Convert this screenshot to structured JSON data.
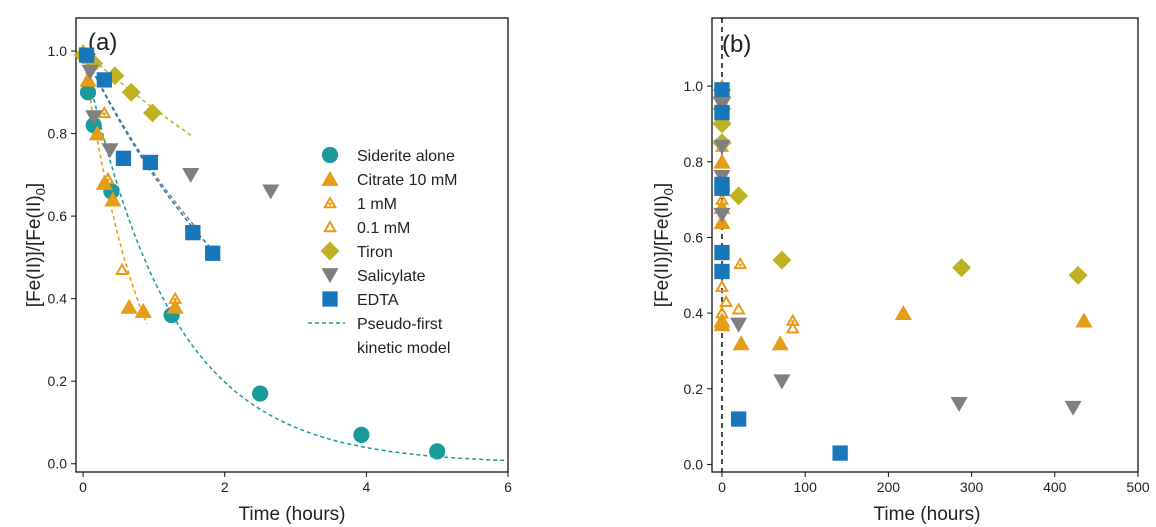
{
  "figure": {
    "panel_a": {
      "label": "(a)",
      "xlabel": "Time (hours)",
      "ylabel_main": "[Fe(II)]/[Fe(II)",
      "ylabel_sub": "0",
      "ylabel_end": "]"
    },
    "panel_b": {
      "label": "(b)",
      "xlabel": "Time (hours)",
      "ylabel_main": "[Fe(II)]/[Fe(II)",
      "ylabel_sub": "0",
      "ylabel_end": "]"
    }
  },
  "legend": {
    "items": [
      {
        "key": "siderite",
        "label": "Siderite alone"
      },
      {
        "key": "citrate10",
        "label": "Citrate 10 mM"
      },
      {
        "key": "citrate1",
        "label": "1 mM"
      },
      {
        "key": "citrate01",
        "label": "0.1 mM"
      },
      {
        "key": "tiron",
        "label": "Tiron"
      },
      {
        "key": "salicylate",
        "label": "Salicylate"
      },
      {
        "key": "edta",
        "label": "EDTA"
      }
    ],
    "model_line1": "Pseudo-first",
    "model_line2": "kinetic model"
  },
  "colors": {
    "siderite": "#1a9a9a",
    "citrate": "#e69c17",
    "tiron": "#bdb322",
    "salicylate": "#808080",
    "edta": "#1877b8"
  },
  "chart_data": [
    {
      "type": "scatter",
      "panel": "a",
      "xlabel": "Time (hours)",
      "ylabel": "[Fe(II)]/[Fe(II)0]",
      "xlim": [
        -0.1,
        6
      ],
      "ylim": [
        -0.02,
        1.08
      ],
      "xticks": [
        0,
        2,
        4,
        6
      ],
      "yticks": [
        0.0,
        0.2,
        0.4,
        0.6,
        0.8,
        1.0
      ],
      "grid": false,
      "legend_position": "right",
      "series": [
        {
          "key": "siderite",
          "name": "Siderite alone",
          "marker": "circle",
          "x": [
            0.07,
            0.15,
            0.4,
            1.25,
            2.5,
            3.93,
            5.0
          ],
          "y": [
            0.9,
            0.82,
            0.66,
            0.36,
            0.17,
            0.07,
            0.03
          ]
        },
        {
          "key": "citrate10",
          "name": "Citrate 10 mM",
          "marker": "triangle-up",
          "x": [
            0.07,
            0.2,
            0.3,
            0.42,
            0.65,
            0.85,
            1.3
          ],
          "y": [
            0.93,
            0.8,
            0.68,
            0.64,
            0.38,
            0.37,
            0.38
          ]
        },
        {
          "key": "citrate1",
          "name": "1 mM",
          "marker": "triangle-up-dotted",
          "x": [
            0.0,
            0.3,
            0.35,
            1.3
          ],
          "y": [
            1.0,
            0.85,
            0.69,
            0.4
          ]
        },
        {
          "key": "citrate01",
          "name": "0.1 mM",
          "marker": "triangle-up-open",
          "x": [
            0.0,
            0.55
          ],
          "y": [
            1.0,
            0.47
          ]
        },
        {
          "key": "tiron",
          "name": "Tiron",
          "marker": "diamond",
          "x": [
            0.0,
            0.15,
            0.45,
            0.68,
            0.98
          ],
          "y": [
            0.99,
            0.97,
            0.94,
            0.9,
            0.85
          ]
        },
        {
          "key": "salicylate",
          "name": "Salicylate",
          "marker": "triangle-down",
          "x": [
            0.1,
            0.15,
            0.38,
            0.95,
            1.52,
            2.65
          ],
          "y": [
            0.95,
            0.84,
            0.76,
            0.73,
            0.7,
            0.66
          ]
        },
        {
          "key": "edta",
          "name": "EDTA",
          "marker": "square",
          "x": [
            0.05,
            0.3,
            0.57,
            0.95,
            1.55,
            1.83
          ],
          "y": [
            0.99,
            0.93,
            0.74,
            0.73,
            0.56,
            0.51
          ]
        }
      ],
      "model_fits": [
        {
          "key": "siderite",
          "k": 0.81,
          "x_range": [
            0,
            6
          ]
        },
        {
          "key": "citrate10",
          "k": 1.2,
          "x_range": [
            0,
            0.9
          ]
        },
        {
          "key": "tiron",
          "k": 0.15,
          "x_range": [
            0,
            1.55
          ]
        },
        {
          "key": "salicylate",
          "k": 0.35,
          "x_range": [
            0,
            1.6
          ]
        },
        {
          "key": "edta",
          "k": 0.36,
          "x_range": [
            0,
            1.85
          ]
        }
      ]
    },
    {
      "type": "scatter",
      "panel": "b",
      "xlabel": "Time (hours)",
      "ylabel": "[Fe(II)]/[Fe(II)0]",
      "xlim": [
        -12,
        500
      ],
      "ylim": [
        -0.02,
        1.18
      ],
      "xticks": [
        0,
        100,
        200,
        300,
        400,
        500
      ],
      "yticks": [
        0.0,
        0.2,
        0.4,
        0.6,
        0.8,
        1.0
      ],
      "grid": false,
      "vline_x": 0,
      "series": [
        {
          "key": "citrate10",
          "marker": "triangle-up",
          "x": [
            0,
            0,
            0,
            0,
            0,
            0,
            23,
            70,
            218,
            435
          ],
          "y": [
            0.92,
            0.8,
            0.68,
            0.64,
            0.38,
            0.37,
            0.32,
            0.32,
            0.4,
            0.38
          ]
        },
        {
          "key": "citrate1",
          "marker": "triangle-up-dotted",
          "x": [
            0,
            0,
            0,
            22,
            85
          ],
          "y": [
            1.0,
            0.84,
            0.7,
            0.53,
            0.38
          ]
        },
        {
          "key": "citrate01",
          "marker": "triangle-up-open",
          "x": [
            0,
            0,
            0,
            5,
            20,
            85
          ],
          "y": [
            1.0,
            0.47,
            0.4,
            0.43,
            0.41,
            0.36
          ]
        },
        {
          "key": "tiron",
          "marker": "diamond",
          "x": [
            0,
            0,
            0,
            0,
            0,
            0,
            20,
            72,
            288,
            428
          ],
          "y": [
            0.99,
            0.97,
            0.94,
            0.9,
            0.85,
            0.85,
            0.71,
            0.54,
            0.52,
            0.5
          ]
        },
        {
          "key": "salicylate",
          "marker": "triangle-down",
          "x": [
            0,
            0,
            0,
            0,
            20,
            72,
            285,
            422
          ],
          "y": [
            0.95,
            0.84,
            0.76,
            0.66,
            0.37,
            0.22,
            0.16,
            0.15
          ]
        },
        {
          "key": "edta",
          "marker": "square",
          "x": [
            0,
            0,
            0,
            0,
            0,
            0,
            20,
            142
          ],
          "y": [
            0.99,
            0.93,
            0.74,
            0.73,
            0.56,
            0.51,
            0.12,
            0.03
          ]
        }
      ]
    }
  ]
}
